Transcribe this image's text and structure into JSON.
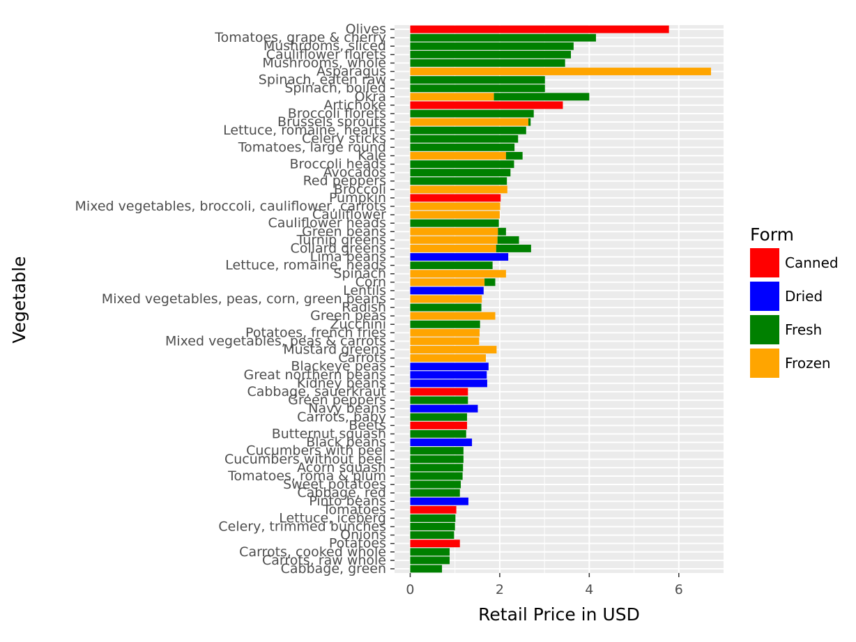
{
  "chart_data": {
    "type": "bar",
    "orientation": "horizontal",
    "stacked": true,
    "xlabel": "Retail Price in USD",
    "ylabel": "Vegetable",
    "xlim": [
      -0.35,
      7.0
    ],
    "xticks": [
      0,
      2,
      4,
      6
    ],
    "grid": true,
    "legend": {
      "title": "Form",
      "placement": "right"
    },
    "colors": {
      "Canned": "#ff0000",
      "Dried": "#0000ff",
      "Fresh": "#008000",
      "Frozen": "#ffa500"
    },
    "categories": [
      "Olives",
      "Tomatoes, grape & cherry",
      "Mushrooms, sliced",
      "Cauliflower florets",
      "Mushrooms, whole",
      "Asparagus",
      "Spinach, eaten raw",
      "Spinach, boiled",
      "Okra",
      "Artichoke",
      "Broccoli florets",
      "Brussels sprouts",
      "Lettuce, romaine, hearts",
      "Celery sticks",
      "Tomatoes, large round",
      "Kale",
      "Broccoli heads",
      "Avocados",
      "Red peppers",
      "Broccoli",
      "Pumpkin",
      "Mixed vegetables, broccoli, cauliflower, carrots",
      "Cauliflower",
      "Cauliflower heads",
      "Green beans",
      "Turnip greens",
      "Collard greens",
      "Lima beans",
      "Lettuce, romaine, heads",
      "Spinach",
      "Corn",
      "Lentils",
      "Mixed vegetables, peas, corn, green beans",
      "Radish",
      "Green peas",
      "Zucchini",
      "Potatoes, french fries",
      "Mixed vegetables, peas & carrots",
      "Mustard greens",
      "Carrots",
      "Blackeye peas",
      "Great northern beans",
      "Kidney beans",
      "Cabbage, sauerkraut",
      "Green peppers",
      "Navy beans",
      "Carrots, baby",
      "Beets",
      "Butternut squash",
      "Black beans",
      "Cucumbers with peel",
      "Cucumbers without peel",
      "Acorn squash",
      "Tomatoes, roma & plum",
      "Sweet potatoes",
      "Cabbage, red",
      "Pinto beans",
      "Tomatoes",
      "Lettuce, iceberg",
      "Celery, trimmed bunches",
      "Onions",
      "Potatoes",
      "Carrots, cooked whole",
      "Carrots, raw whole",
      "Cabbage, green"
    ],
    "series": [
      {
        "name": "Canned",
        "values": [
          5.78,
          0,
          0,
          0,
          0,
          0,
          0,
          0,
          0,
          3.41,
          0,
          0,
          0,
          0,
          0,
          0,
          0,
          0,
          0,
          0,
          2.02,
          0,
          0,
          0,
          0,
          0,
          0,
          0,
          0,
          0,
          0,
          0,
          0,
          0,
          0,
          0,
          0,
          0,
          0,
          0,
          0,
          0,
          0,
          1.29,
          0,
          0,
          0,
          1.27,
          0,
          0,
          0,
          0,
          0,
          0,
          0,
          0,
          0,
          1.03,
          0,
          0,
          0,
          1.11,
          0,
          0,
          0
        ]
      },
      {
        "name": "Dried",
        "values": [
          0,
          0,
          0,
          0,
          0,
          0,
          0,
          0,
          0,
          0,
          0,
          0,
          0,
          0,
          0,
          0,
          0,
          0,
          0,
          0,
          0,
          0,
          0,
          0,
          0,
          0,
          0,
          2.19,
          0,
          0,
          0,
          1.64,
          0,
          0,
          0,
          0,
          0,
          0,
          0,
          0,
          1.75,
          1.71,
          1.72,
          0,
          0,
          1.51,
          0,
          0,
          0,
          1.38,
          0,
          0,
          0,
          0,
          0,
          0,
          1.3,
          0,
          0,
          0,
          0,
          0,
          0,
          0,
          0
        ]
      },
      {
        "name": "Fresh",
        "values": [
          0,
          4.15,
          3.65,
          3.59,
          3.46,
          0,
          3.01,
          3.01,
          2.13,
          0,
          2.76,
          0.05,
          2.59,
          2.41,
          2.33,
          0.37,
          2.32,
          2.24,
          2.16,
          0,
          0,
          0,
          0,
          1.98,
          0.18,
          0.48,
          0.78,
          0,
          1.84,
          0,
          0.24,
          0,
          0,
          1.59,
          0,
          1.56,
          0,
          0,
          0,
          0,
          0,
          0,
          0,
          0,
          1.29,
          0,
          1.27,
          0,
          1.25,
          0,
          1.19,
          1.19,
          1.18,
          1.17,
          1.13,
          1.11,
          0,
          0,
          1.01,
          1.0,
          0.98,
          0,
          0.88,
          0.88,
          0.71
        ]
      },
      {
        "name": "Frozen",
        "values": [
          0,
          0,
          0,
          0,
          0,
          6.72,
          0,
          0,
          1.87,
          0,
          0,
          2.64,
          0,
          0,
          0,
          2.14,
          0,
          0,
          0,
          2.17,
          0,
          2.01,
          2.0,
          0,
          1.96,
          1.95,
          1.92,
          0,
          0,
          2.14,
          1.66,
          0,
          1.6,
          0,
          1.9,
          0,
          1.55,
          1.54,
          1.93,
          1.69,
          0,
          0,
          0,
          0,
          0,
          0,
          0,
          0,
          0,
          0,
          0,
          0,
          0,
          0,
          0,
          0,
          0,
          0,
          0,
          0,
          0,
          0,
          0,
          0,
          0
        ]
      }
    ]
  }
}
